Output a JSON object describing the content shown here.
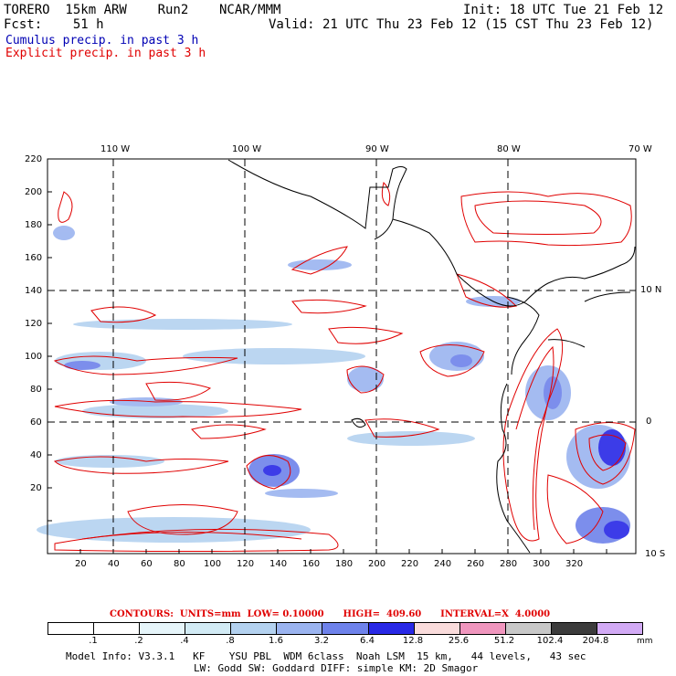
{
  "header": {
    "model": "TORERO  15km ARW    Run2    NCAR/MMM",
    "fcst": "Fcst:    51 h",
    "init": "Init: 18 UTC Tue 21 Feb 12",
    "valid": "Valid: 21 UTC Thu 23 Feb 12 (15 CST Thu 23 Feb 12)",
    "cumulus_legend": "Cumulus precip. in past 3 h",
    "explicit_legend": "Explicit precip. in past 3 h"
  },
  "colors": {
    "cumulus": "#0000b4",
    "explicit": "#e00000",
    "grid": "#000000"
  },
  "map": {
    "lon_labels": [
      "110 W",
      "100 W",
      "90 W",
      "80 W",
      "70 W"
    ],
    "lat_labels": [
      "10 N",
      "0",
      "10 S"
    ],
    "x_ticks": [
      "20",
      "40",
      "60",
      "80",
      "100",
      "120",
      "140",
      "160",
      "180",
      "200",
      "220",
      "240",
      "260",
      "280",
      "300",
      "320"
    ],
    "y_ticks": [
      "220",
      "200",
      "180",
      "160",
      "140",
      "120",
      "100",
      "80",
      "60",
      "40",
      "20"
    ]
  },
  "contour_info": {
    "line": "CONTOURS:  UNITS=mm  LOW= 0.10000      HIGH=  409.60      INTERVAL=X  4.0000"
  },
  "colorbar": {
    "labels": [
      ".1",
      ".2",
      ".4",
      ".8",
      "1.6",
      "3.2",
      "6.4",
      "12.8",
      "25.6",
      "51.2",
      "102.4",
      "204.8"
    ],
    "units": "mm",
    "colors": [
      "#ffffff",
      "#ffffff",
      "#e6f5fa",
      "#d2ebf5",
      "#b4d2f0",
      "#9bb4f0",
      "#6e82eb",
      "#2828e6",
      "#fadcdc",
      "#f096be",
      "#c8c8c8",
      "#3c3c3c",
      "#d2aaf5"
    ]
  },
  "footer": {
    "line1": "Model Info: V3.3.1   KF    YSU PBL  WDM 6class  Noah LSM  15 km,   44 levels,   43 sec",
    "line2": "LW: Godd SW: Goddard DIFF: simple KM: 2D Smagor"
  }
}
